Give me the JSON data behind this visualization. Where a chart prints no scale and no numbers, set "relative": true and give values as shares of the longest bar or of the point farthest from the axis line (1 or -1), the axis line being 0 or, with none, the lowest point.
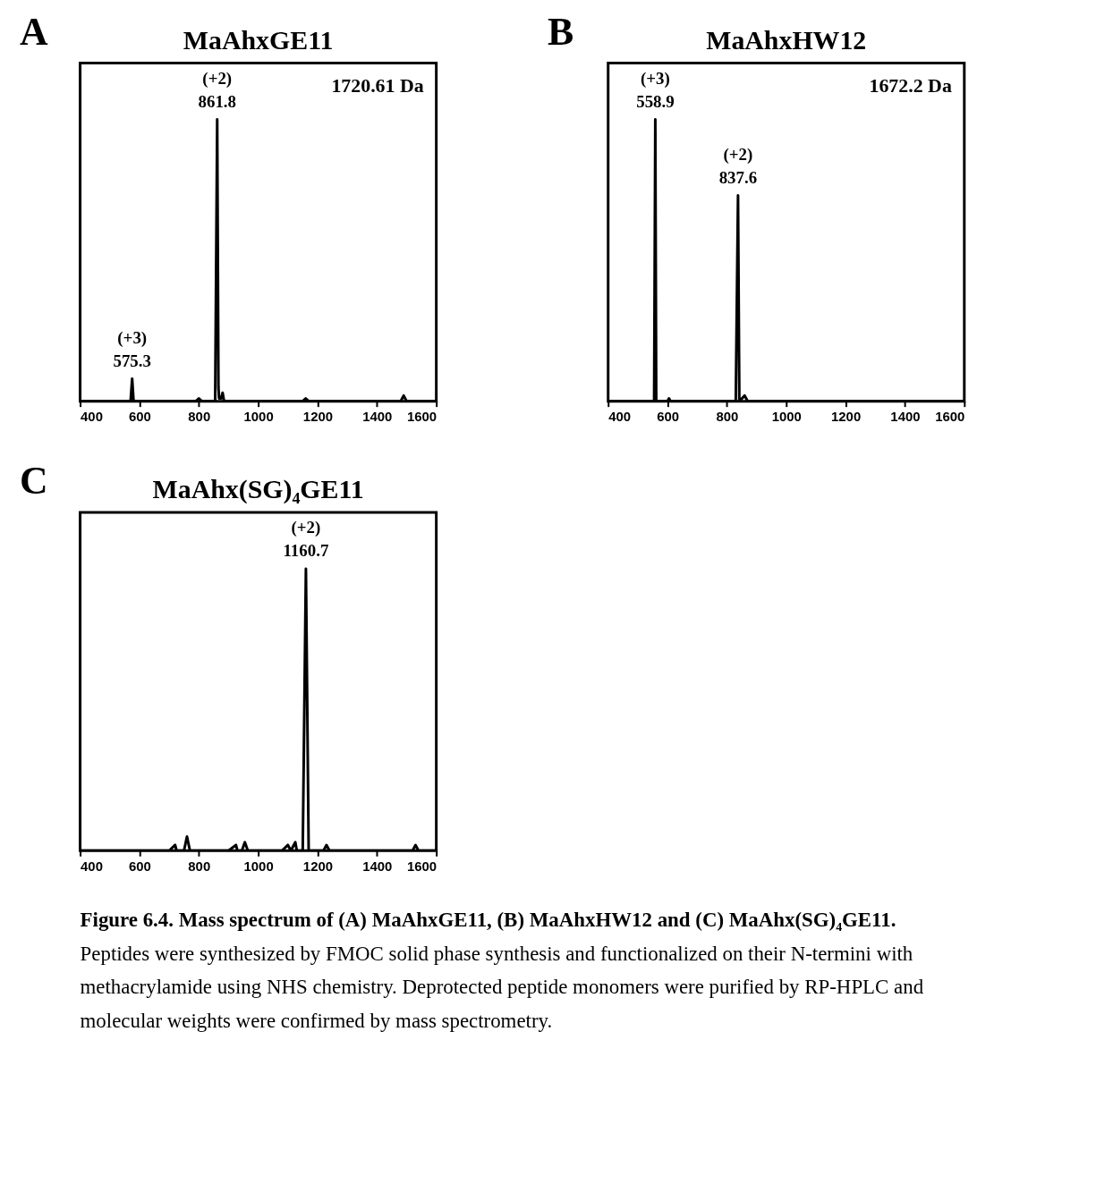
{
  "chart_data": [
    {
      "type": "line",
      "title": "MaAhxGE11",
      "relative": true,
      "xlim": [
        400,
        1600
      ],
      "xticks": [
        400,
        600,
        800,
        1000,
        1200,
        1400,
        1600
      ],
      "tick_labels": "x",
      "grid": false,
      "line_style": "solid",
      "annotations": [
        "A",
        "1720.61 Da",
        {
          "text": "(+2)\n861.8",
          "x": 861.8,
          "y": 1
        },
        {
          "text": "(+3)\n575.3",
          "x": 575.3,
          "y": 0.08
        }
      ],
      "series": [
        {
          "color": "#000000",
          "x": [
            400,
            560,
            570,
            575.3,
            580,
            700,
            790,
            800,
            810,
            855,
            861.8,
            866,
            868,
            875,
            880,
            885,
            1000,
            1150,
            1160,
            1170,
            1480,
            1490,
            1500,
            1600
          ],
          "values": [
            0,
            0,
            0,
            0.08,
            0,
            0,
            0,
            0.01,
            0,
            0,
            1,
            0.05,
            0.01,
            0.01,
            0.03,
            0,
            0,
            0,
            0.01,
            0,
            0,
            0.02,
            0,
            0
          ]
        }
      ]
    },
    {
      "type": "line",
      "title": "MaAhxHW12",
      "relative": true,
      "xlim": [
        400,
        1600
      ],
      "xticks": [
        400,
        600,
        800,
        1000,
        1200,
        1400,
        1600
      ],
      "tick_labels": "x",
      "grid": false,
      "line_style": "solid",
      "annotations": [
        "B",
        "1672.2 Da",
        {
          "text": "(+3)\n558.9",
          "x": 558.9,
          "y": 1
        },
        {
          "text": "(+2)\n837.6",
          "x": 837.6,
          "y": 0.73
        }
      ],
      "series": [
        {
          "color": "#000000",
          "x": [
            400,
            500,
            555,
            558.9,
            562,
            600,
            605,
            610,
            700,
            830,
            837.6,
            842,
            860,
            865,
            870,
            1000,
            1600
          ],
          "values": [
            0,
            0,
            0,
            1,
            0,
            0,
            0.01,
            0,
            0,
            0,
            0.73,
            0,
            0.02,
            0.01,
            0,
            0,
            0
          ]
        }
      ]
    },
    {
      "type": "line",
      "title": "MaAhx(SG)₄GE11",
      "relative": true,
      "xlim": [
        400,
        1600
      ],
      "xticks": [
        400,
        600,
        800,
        1000,
        1200,
        1400,
        1600
      ],
      "tick_labels": "x",
      "grid": false,
      "line_style": "solid",
      "annotations": [
        "C",
        {
          "text": "(+2)\n1160.7",
          "x": 1160.7,
          "y": 1
        }
      ],
      "series": [
        {
          "color": "#000000",
          "x": [
            400,
            700,
            720,
            725,
            750,
            760,
            770,
            900,
            925,
            930,
            945,
            955,
            965,
            1080,
            1100,
            1110,
            1125,
            1130,
            1150,
            1160.7,
            1170,
            1220,
            1230,
            1240,
            1520,
            1530,
            1540,
            1600
          ],
          "values": [
            0,
            0,
            0.02,
            0,
            0,
            0.05,
            0,
            0,
            0.02,
            0,
            0,
            0.03,
            0,
            0,
            0.02,
            0,
            0.03,
            0,
            0,
            1,
            0,
            0,
            0.02,
            0,
            0,
            0.02,
            0,
            0
          ]
        }
      ]
    },
    {
      "type": "other",
      "annotations": [
        "Figure 6.4. Mass spectrum of (A) MaAhxGE11, (B) MaAhxHW12 and (C) MaAhx(SG)₄GE11.",
        "Peptides were synthesized by FMOC solid phase synthesis and functionalized on their N-termini with methacrylamide using NHS chemistry. Deprotected peptide monomers were purified by RP-HPLC and molecular weights were confirmed by mass spectrometry."
      ]
    }
  ]
}
